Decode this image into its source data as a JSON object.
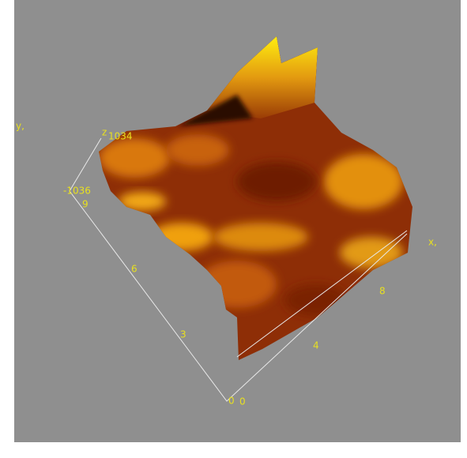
{
  "axes": {
    "z": {
      "label": "z",
      "max_label": "1034",
      "min_label": "-1036"
    },
    "y": {
      "label": "y,",
      "ticks": [
        9,
        6,
        3,
        0
      ]
    },
    "x": {
      "label": "x,",
      "ticks": [
        0,
        4,
        8
      ]
    }
  }
}
